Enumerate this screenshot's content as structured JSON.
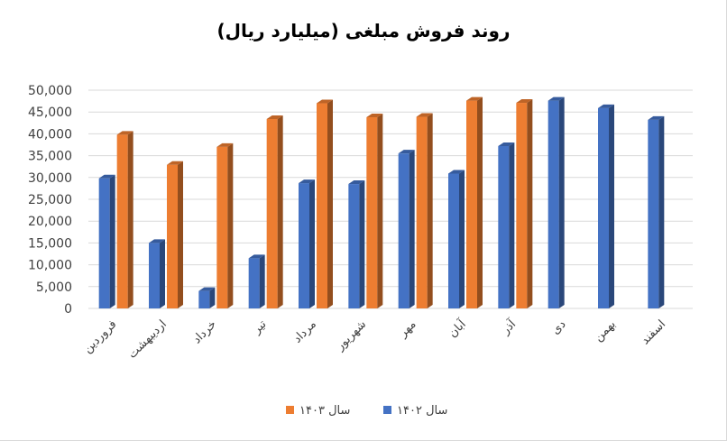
{
  "chart_data": {
    "type": "bar",
    "title": "روند فروش مبلغی (میلیارد ریال)",
    "xlabel": "",
    "ylabel": "",
    "ylim": [
      0,
      50000
    ],
    "yticks": [
      "0",
      "5,000",
      "10,000",
      "15,000",
      "20,000",
      "25,000",
      "30,000",
      "35,000",
      "40,000",
      "45,000",
      "50,000"
    ],
    "categories": [
      "فروردین",
      "اردیبهشت",
      "خرداد",
      "تیر",
      "مرداد",
      "شهریور",
      "مهر",
      "آبان",
      "آذر",
      "دی",
      "بهمن",
      "اسفند"
    ],
    "series": [
      {
        "name": "سال ۱۴۰۲",
        "color": "#4472c4",
        "values": [
          29800,
          15000,
          4000,
          11500,
          28700,
          28500,
          35500,
          30900,
          37200,
          47600,
          45900,
          43200
        ]
      },
      {
        "name": "سال ۱۴۰۳",
        "color": "#ed7d31",
        "values": [
          39800,
          32900,
          37000,
          43400,
          47000,
          43800,
          43900,
          47600,
          47100,
          null,
          null,
          null
        ]
      }
    ],
    "grid": true,
    "legend": "bottom",
    "style": "3d-columns"
  }
}
